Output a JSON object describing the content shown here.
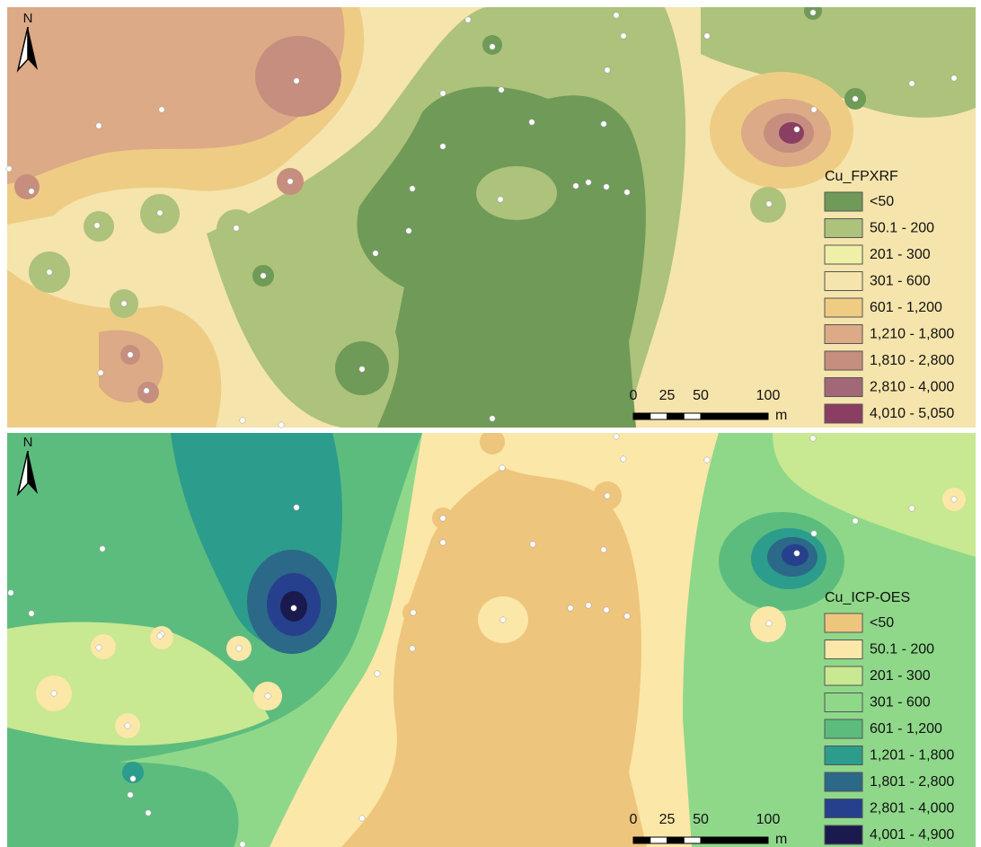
{
  "north_label": "N",
  "panels": [
    {
      "legend_title": "Cu_FPXRF",
      "legend": [
        {
          "label": "<50",
          "color": "#6f9a58"
        },
        {
          "label": "50.1 - 200",
          "color": "#adc27a"
        },
        {
          "label": "201 - 300",
          "color": "#eef0a8"
        },
        {
          "label": "301 - 600",
          "color": "#f5e4ac"
        },
        {
          "label": "601 - 1,200",
          "color": "#efcc84"
        },
        {
          "label": "1,210 - 1,800",
          "color": "#dcaa86"
        },
        {
          "label": "1,810 - 2,800",
          "color": "#c68e7e"
        },
        {
          "label": "2,810 - 4,000",
          "color": "#a26878"
        },
        {
          "label": "4,010 - 5,050",
          "color": "#8a3e62"
        }
      ],
      "scale": {
        "labels": [
          "0",
          "25",
          "50",
          "100"
        ],
        "unit": "m"
      }
    },
    {
      "legend_title": "Cu_ICP-OES",
      "legend": [
        {
          "label": "<50",
          "color": "#eec57c"
        },
        {
          "label": "50.1 - 200",
          "color": "#fbe7a8"
        },
        {
          "label": "201 - 300",
          "color": "#c8e892"
        },
        {
          "label": "301 - 600",
          "color": "#8fd88a"
        },
        {
          "label": "601 - 1,200",
          "color": "#5cbc7e"
        },
        {
          "label": "1,201 - 1,800",
          "color": "#2c9c8c"
        },
        {
          "label": "1,801 - 2,800",
          "color": "#2c6888"
        },
        {
          "label": "2,801 - 4,000",
          "color": "#26408e"
        },
        {
          "label": "4,001 - 4,900",
          "color": "#1a1a4e"
        }
      ],
      "scale": {
        "labels": [
          "0",
          "25",
          "50",
          "100"
        ],
        "unit": "m"
      }
    }
  ]
}
